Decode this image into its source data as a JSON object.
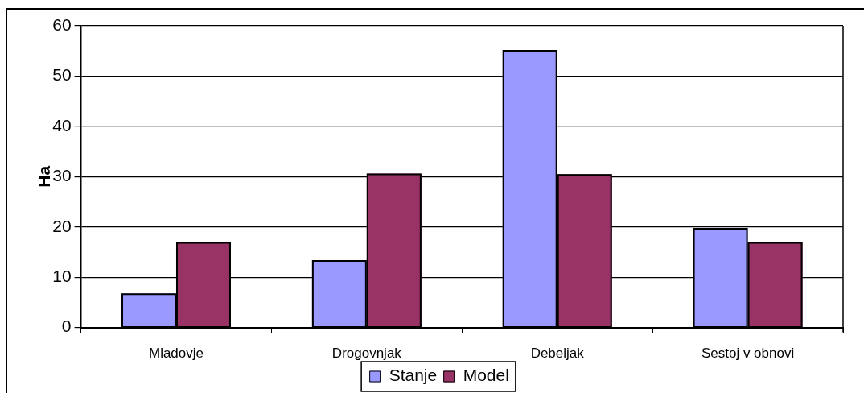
{
  "chart_data": {
    "type": "bar",
    "ylabel": "Ha",
    "categories": [
      "Mladovje",
      "Drogovnjak",
      "Debeljak",
      "Sestoj v obnovi"
    ],
    "series": [
      {
        "name": "Stanje",
        "color": "#9999ff",
        "values": [
          6.8,
          13.4,
          55.2,
          19.8
        ]
      },
      {
        "name": "Model",
        "color": "#993366",
        "values": [
          17,
          30.6,
          30.5,
          17
        ]
      }
    ],
    "ylim": [
      0,
      60
    ],
    "yticks": [
      0,
      10,
      20,
      30,
      40,
      50,
      60
    ],
    "grid": "y",
    "legend": "bottom"
  }
}
